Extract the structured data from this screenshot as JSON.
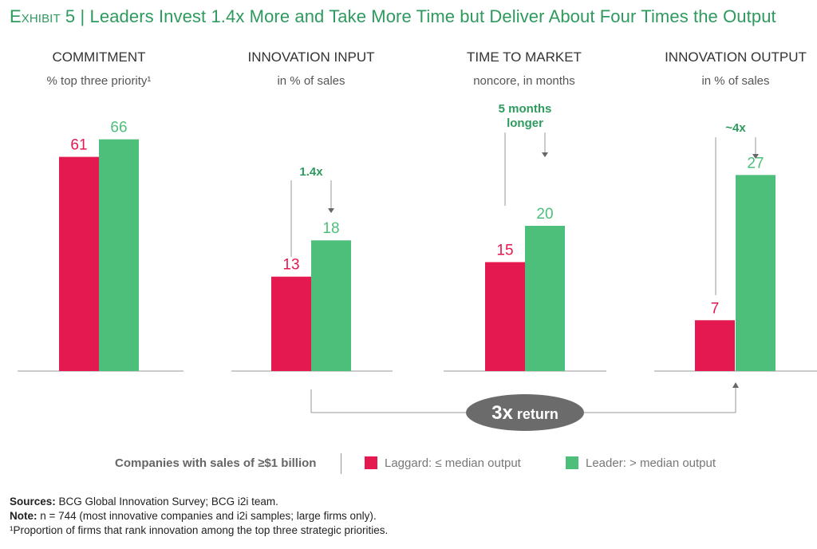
{
  "header": {
    "exhibit": "Exhibit 5",
    "separator": "|",
    "title": "Leaders Invest 1.4x More and Take More Time but Deliver About Four Times the Output"
  },
  "colors": {
    "laggard": "#e4194f",
    "leader": "#4dbf7a",
    "title": "#2e9a5e",
    "baseline": "#999999"
  },
  "chart_data": {
    "type": "bar",
    "panels": [
      {
        "title": "COMMITMENT",
        "subtitle": "% top three priority¹",
        "series": [
          {
            "name": "Laggard",
            "value": 61
          },
          {
            "name": "Leader",
            "value": 66
          }
        ],
        "ylim": [
          0,
          100
        ]
      },
      {
        "title": "INNOVATION INPUT",
        "subtitle": "in % of sales",
        "series": [
          {
            "name": "Laggard",
            "value": 13
          },
          {
            "name": "Leader",
            "value": 18
          }
        ],
        "ylim": [
          0,
          40
        ],
        "annotation": "1.4x"
      },
      {
        "title": "TIME TO MARKET",
        "subtitle": "noncore, in months",
        "series": [
          {
            "name": "Laggard",
            "value": 15
          },
          {
            "name": "Leader",
            "value": 20
          }
        ],
        "ylim": [
          0,
          40
        ],
        "annotation": "5 months longer"
      },
      {
        "title": "INNOVATION OUTPUT",
        "subtitle": "in % of sales",
        "series": [
          {
            "name": "Laggard",
            "value": 7
          },
          {
            "name": "Leader",
            "value": 27
          }
        ],
        "ylim": [
          0,
          40
        ],
        "annotation": "~4x"
      }
    ],
    "return_label": "3x return"
  },
  "legend": {
    "title": "Companies with sales of ≥$1 billion",
    "laggard": "Laggard: ≤ median output",
    "leader": "Leader: > median output"
  },
  "notes": {
    "sources_label": "Sources:",
    "sources": " BCG Global Innovation Survey; BCG i2i team.",
    "note_label": "Note:",
    "note": " n = 744 (most innovative companies and i2i samples; large firms only).",
    "footnote": "¹Proportion of firms that rank innovation among the top three strategic priorities."
  }
}
